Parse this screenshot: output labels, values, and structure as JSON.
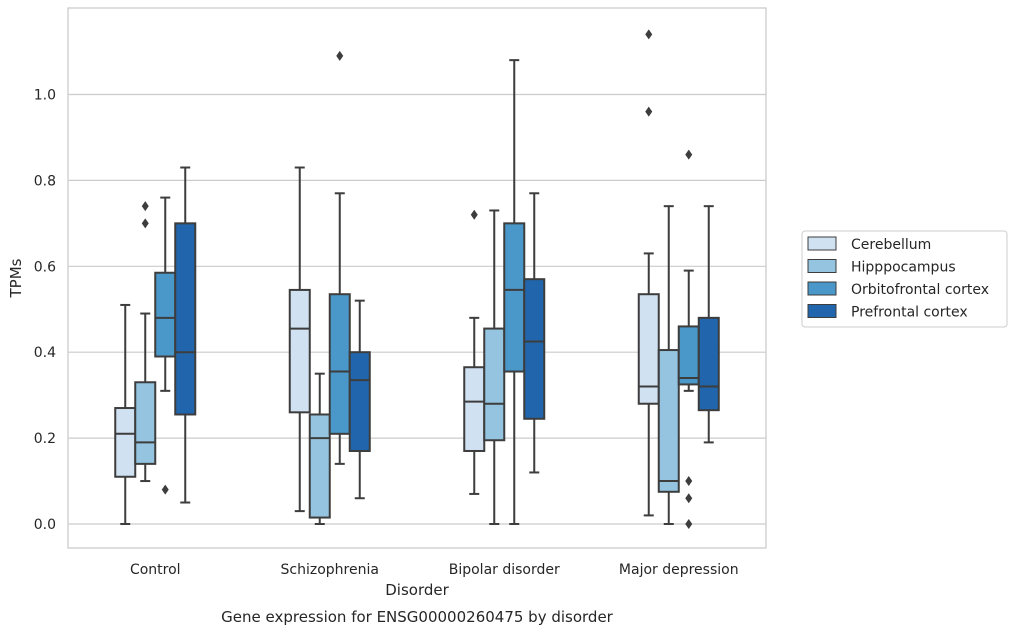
{
  "chart_data": {
    "type": "box",
    "title": "Gene expression for ENSG00000260475 by disorder",
    "xlabel": "Disorder",
    "ylabel": "TPMs",
    "ylim": [
      -0.055,
      1.205
    ],
    "yticks": [
      "0.0",
      "0.2",
      "0.4",
      "0.6",
      "0.8",
      "1.0"
    ],
    "grid": true,
    "legend_position": "right",
    "categories": [
      "Control",
      "Schizophrenia",
      "Bipolar disorder",
      "Major depression"
    ],
    "series": [
      {
        "name": "Cerebellum",
        "color": "#d0e1f2",
        "boxes": [
          {
            "whislo": 0.0,
            "q1": 0.11,
            "med": 0.21,
            "q3": 0.27,
            "whishi": 0.51,
            "fliers": []
          },
          {
            "whislo": 0.03,
            "q1": 0.26,
            "med": 0.455,
            "q3": 0.545,
            "whishi": 0.83,
            "fliers": []
          },
          {
            "whislo": 0.07,
            "q1": 0.17,
            "med": 0.285,
            "q3": 0.365,
            "whishi": 0.48,
            "fliers": [
              0.72
            ]
          },
          {
            "whislo": 0.02,
            "q1": 0.28,
            "med": 0.32,
            "q3": 0.535,
            "whishi": 0.63,
            "fliers": [
              0.96,
              1.14
            ]
          }
        ]
      },
      {
        "name": "Hipppocampus",
        "color": "#94c4df",
        "boxes": [
          {
            "whislo": 0.1,
            "q1": 0.14,
            "med": 0.19,
            "q3": 0.33,
            "whishi": 0.49,
            "fliers": [
              0.7,
              0.74
            ]
          },
          {
            "whislo": 0.0,
            "q1": 0.015,
            "med": 0.2,
            "q3": 0.255,
            "whishi": 0.35,
            "fliers": []
          },
          {
            "whislo": 0.0,
            "q1": 0.195,
            "med": 0.28,
            "q3": 0.455,
            "whishi": 0.73,
            "fliers": []
          },
          {
            "whislo": 0.0,
            "q1": 0.075,
            "med": 0.1,
            "q3": 0.405,
            "whishi": 0.74,
            "fliers": []
          }
        ]
      },
      {
        "name": "Orbitofrontal cortex",
        "color": "#4a98c9",
        "boxes": [
          {
            "whislo": 0.31,
            "q1": 0.39,
            "med": 0.48,
            "q3": 0.585,
            "whishi": 0.76,
            "fliers": [
              0.08
            ]
          },
          {
            "whislo": 0.14,
            "q1": 0.21,
            "med": 0.355,
            "q3": 0.535,
            "whishi": 0.77,
            "fliers": [
              1.09
            ]
          },
          {
            "whislo": 0.0,
            "q1": 0.355,
            "med": 0.545,
            "q3": 0.7,
            "whishi": 1.08,
            "fliers": []
          },
          {
            "whislo": 0.31,
            "q1": 0.325,
            "med": 0.34,
            "q3": 0.46,
            "whishi": 0.59,
            "fliers": [
              0.86,
              0.1,
              0.06,
              0.0
            ]
          }
        ]
      },
      {
        "name": "Prefrontal cortex",
        "color": "#2166ac",
        "boxes": [
          {
            "whislo": 0.05,
            "q1": 0.255,
            "med": 0.4,
            "q3": 0.7,
            "whishi": 0.83,
            "fliers": []
          },
          {
            "whislo": 0.06,
            "q1": 0.17,
            "med": 0.335,
            "q3": 0.4,
            "whishi": 0.52,
            "fliers": []
          },
          {
            "whislo": 0.12,
            "q1": 0.245,
            "med": 0.425,
            "q3": 0.57,
            "whishi": 0.77,
            "fliers": []
          },
          {
            "whislo": 0.19,
            "q1": 0.265,
            "med": 0.32,
            "q3": 0.48,
            "whishi": 0.74,
            "fliers": []
          }
        ]
      }
    ]
  }
}
